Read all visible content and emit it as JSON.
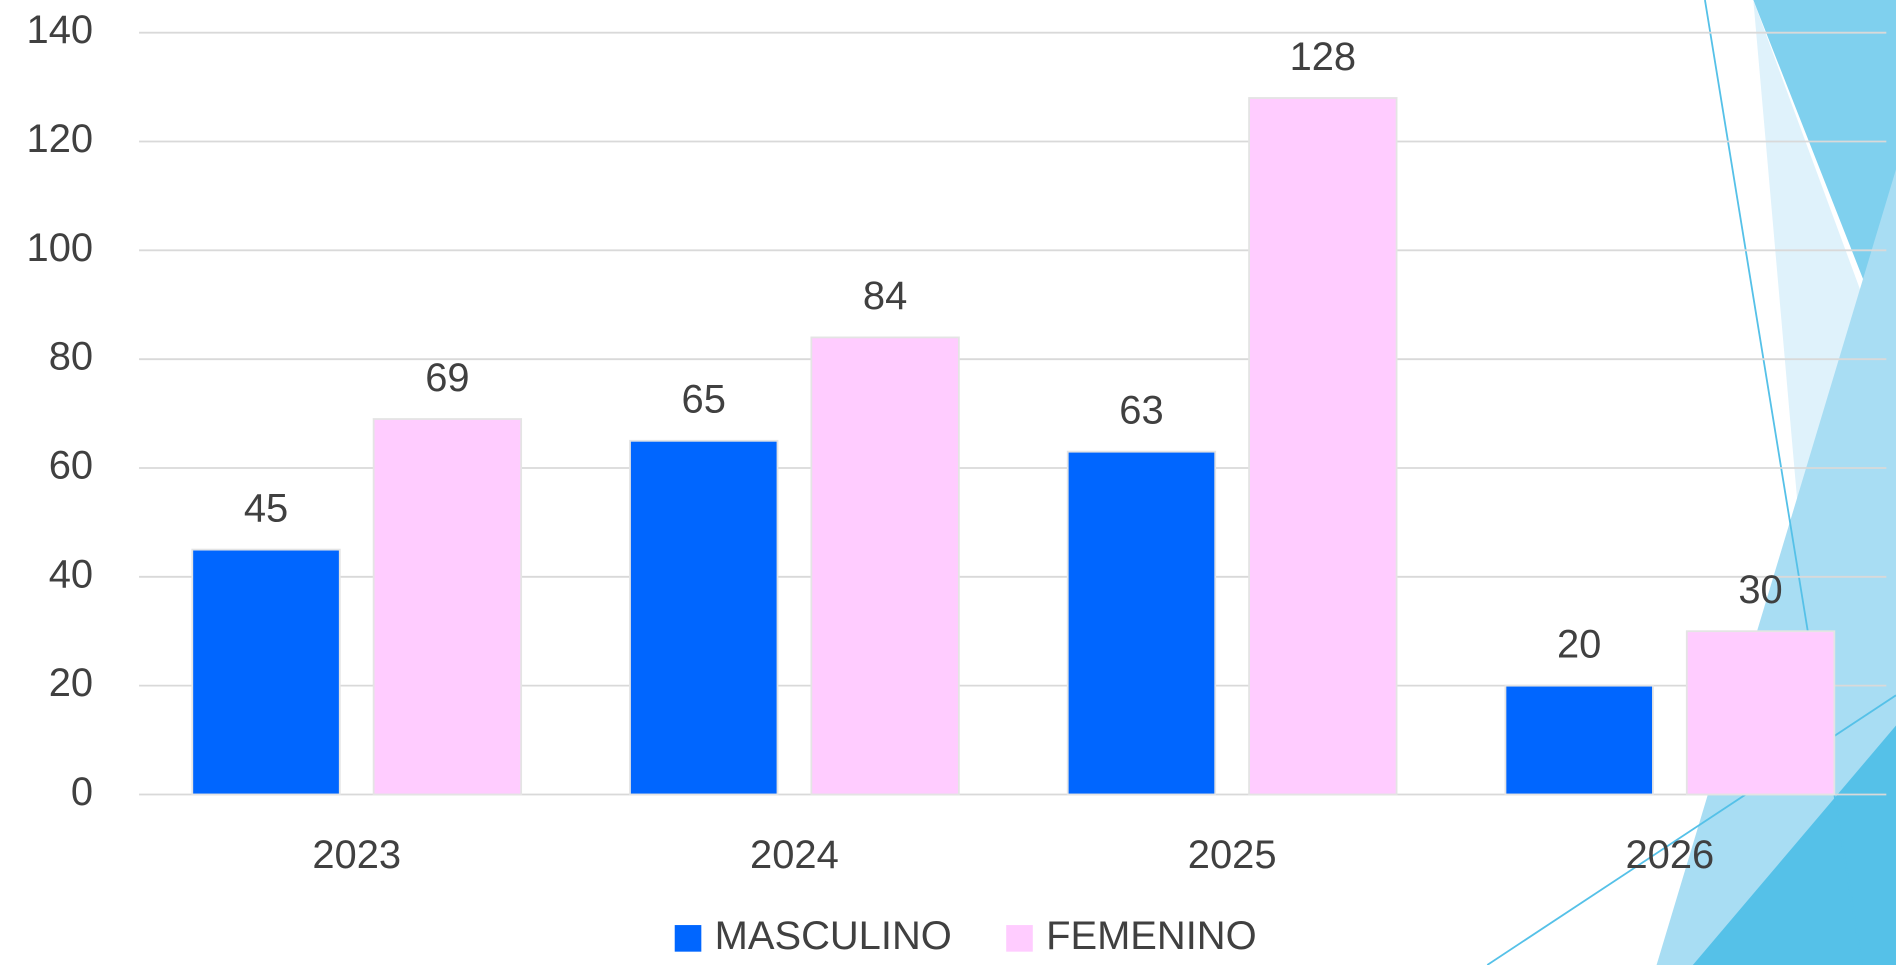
{
  "chart_data": {
    "type": "bar",
    "categories": [
      "2023",
      "2024",
      "2025",
      "2026"
    ],
    "series": [
      {
        "name": "MASCULINO",
        "color": "#0066ff",
        "values": [
          45,
          65,
          63,
          20
        ]
      },
      {
        "name": "FEMENINO",
        "color": "#ffccff",
        "values": [
          69,
          84,
          128,
          30
        ]
      }
    ],
    "ylim": [
      0,
      140
    ],
    "yticks": [
      0,
      20,
      40,
      60,
      80,
      100,
      120,
      140
    ],
    "grid": true
  }
}
